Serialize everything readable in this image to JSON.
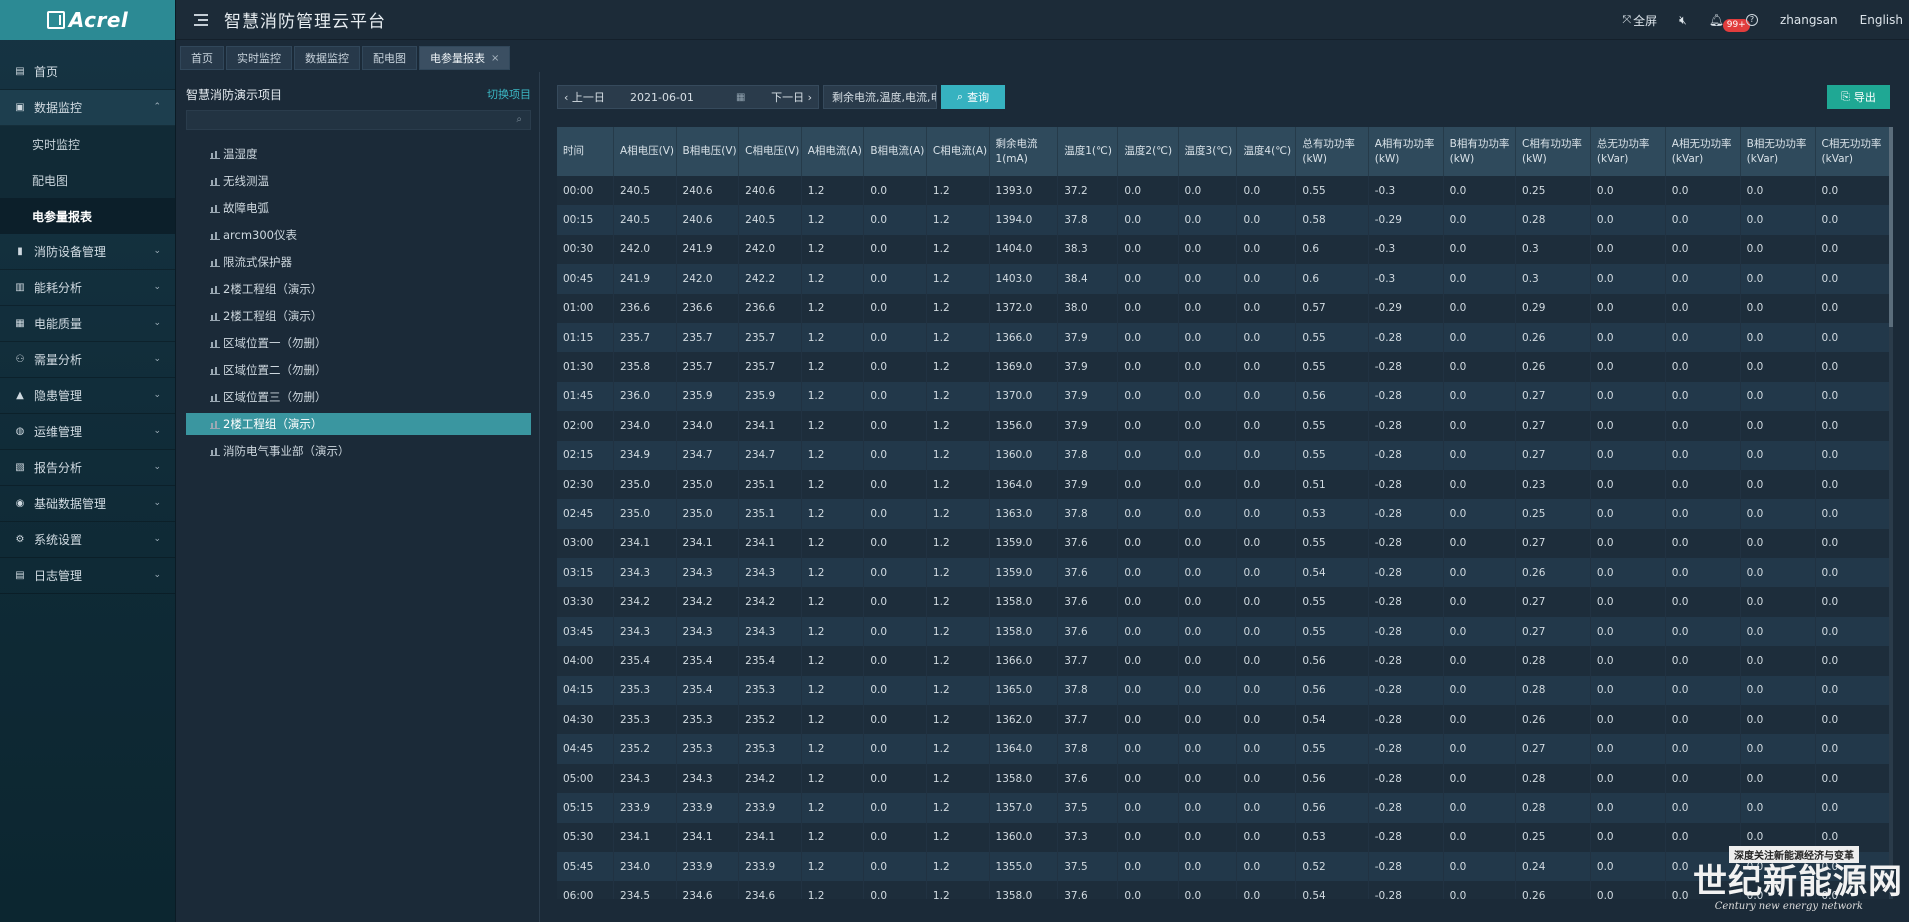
{
  "brand": {
    "name": "Acrel"
  },
  "header": {
    "title": "智慧消防管理云平台",
    "fullscreen": "全屏",
    "notif_badge": "99+",
    "username": "zhangsan",
    "language": "English"
  },
  "sidebar": {
    "items": [
      {
        "label": "首页",
        "icon": "home-icon"
      },
      {
        "label": "数据监控",
        "icon": "monitor-icon",
        "open": true,
        "children": [
          "实时监控",
          "配电图",
          "电参量报表"
        ],
        "active_child": "电参量报表"
      },
      {
        "label": "消防设备管理",
        "icon": "extinguisher-icon"
      },
      {
        "label": "能耗分析",
        "icon": "bar-chart-icon"
      },
      {
        "label": "电能质量",
        "icon": "power-icon"
      },
      {
        "label": "需量分析",
        "icon": "network-icon"
      },
      {
        "label": "隐患管理",
        "icon": "warning-icon"
      },
      {
        "label": "运维管理",
        "icon": "globe-icon"
      },
      {
        "label": "报告分析",
        "icon": "report-icon"
      },
      {
        "label": "基础数据管理",
        "icon": "database-icon"
      },
      {
        "label": "系统设置",
        "icon": "gear-icon"
      },
      {
        "label": "日志管理",
        "icon": "log-icon"
      }
    ]
  },
  "tabs": [
    {
      "label": "首页"
    },
    {
      "label": "实时监控"
    },
    {
      "label": "数据监控"
    },
    {
      "label": "配电图"
    },
    {
      "label": "电参量报表",
      "active": true
    }
  ],
  "tree": {
    "title": "智慧消防演示项目",
    "switch_label": "切换项目",
    "search_placeholder": "",
    "nodes": [
      "温湿度",
      "无线测温",
      "故障电弧",
      "arcm300仪表",
      "限流式保护器",
      "2楼工程组（演示）",
      "2楼工程组（演示）",
      "区域位置一（勿删）",
      "区域位置二（勿删）",
      "区域位置三（勿删）",
      "2楼工程组（演示）",
      "消防电气事业部（演示）"
    ],
    "selected_index": 10
  },
  "toolbar": {
    "prev_label": "上一日",
    "date": "2021-06-01",
    "next_label": "下一日",
    "params": "剩余电流,温度,电流,电",
    "query_label": "查询",
    "export_label": "导出"
  },
  "table": {
    "headers": [
      "时间",
      "A相电压(V)",
      "B相电压(V)",
      "C相电压(V)",
      "A相电流(A)",
      "B相电流(A)",
      "C相电流(A)",
      "剩余电流1(mA)",
      "温度1(℃)",
      "温度2(℃)",
      "温度3(℃)",
      "温度4(℃)",
      "总有功功率(kW)",
      "A相有功功率(kW)",
      "B相有功功率(kW)",
      "C相有功功率(kW)",
      "总无功功率(kVar)",
      "A相无功功率(kVar)",
      "B相无功功率(kVar)",
      "C相无功功率(kVar)"
    ],
    "rows": [
      [
        "00:00",
        "240.5",
        "240.6",
        "240.6",
        "1.2",
        "0.0",
        "1.2",
        "1393.0",
        "37.2",
        "0.0",
        "0.0",
        "0.0",
        "0.55",
        "-0.3",
        "0.0",
        "0.25",
        "0.0",
        "0.0",
        "0.0",
        "0.0"
      ],
      [
        "00:15",
        "240.5",
        "240.6",
        "240.5",
        "1.2",
        "0.0",
        "1.2",
        "1394.0",
        "37.8",
        "0.0",
        "0.0",
        "0.0",
        "0.58",
        "-0.29",
        "0.0",
        "0.28",
        "0.0",
        "0.0",
        "0.0",
        "0.0"
      ],
      [
        "00:30",
        "242.0",
        "241.9",
        "242.0",
        "1.2",
        "0.0",
        "1.2",
        "1404.0",
        "38.3",
        "0.0",
        "0.0",
        "0.0",
        "0.6",
        "-0.3",
        "0.0",
        "0.3",
        "0.0",
        "0.0",
        "0.0",
        "0.0"
      ],
      [
        "00:45",
        "241.9",
        "242.0",
        "242.2",
        "1.2",
        "0.0",
        "1.2",
        "1403.0",
        "38.4",
        "0.0",
        "0.0",
        "0.0",
        "0.6",
        "-0.3",
        "0.0",
        "0.3",
        "0.0",
        "0.0",
        "0.0",
        "0.0"
      ],
      [
        "01:00",
        "236.6",
        "236.6",
        "236.6",
        "1.2",
        "0.0",
        "1.2",
        "1372.0",
        "38.0",
        "0.0",
        "0.0",
        "0.0",
        "0.57",
        "-0.29",
        "0.0",
        "0.29",
        "0.0",
        "0.0",
        "0.0",
        "0.0"
      ],
      [
        "01:15",
        "235.7",
        "235.7",
        "235.7",
        "1.2",
        "0.0",
        "1.2",
        "1366.0",
        "37.9",
        "0.0",
        "0.0",
        "0.0",
        "0.55",
        "-0.28",
        "0.0",
        "0.26",
        "0.0",
        "0.0",
        "0.0",
        "0.0"
      ],
      [
        "01:30",
        "235.8",
        "235.7",
        "235.7",
        "1.2",
        "0.0",
        "1.2",
        "1369.0",
        "37.9",
        "0.0",
        "0.0",
        "0.0",
        "0.55",
        "-0.28",
        "0.0",
        "0.26",
        "0.0",
        "0.0",
        "0.0",
        "0.0"
      ],
      [
        "01:45",
        "236.0",
        "235.9",
        "235.9",
        "1.2",
        "0.0",
        "1.2",
        "1370.0",
        "37.9",
        "0.0",
        "0.0",
        "0.0",
        "0.56",
        "-0.28",
        "0.0",
        "0.27",
        "0.0",
        "0.0",
        "0.0",
        "0.0"
      ],
      [
        "02:00",
        "234.0",
        "234.0",
        "234.1",
        "1.2",
        "0.0",
        "1.2",
        "1356.0",
        "37.9",
        "0.0",
        "0.0",
        "0.0",
        "0.55",
        "-0.28",
        "0.0",
        "0.27",
        "0.0",
        "0.0",
        "0.0",
        "0.0"
      ],
      [
        "02:15",
        "234.9",
        "234.7",
        "234.7",
        "1.2",
        "0.0",
        "1.2",
        "1360.0",
        "37.8",
        "0.0",
        "0.0",
        "0.0",
        "0.55",
        "-0.28",
        "0.0",
        "0.27",
        "0.0",
        "0.0",
        "0.0",
        "0.0"
      ],
      [
        "02:30",
        "235.0",
        "235.0",
        "235.1",
        "1.2",
        "0.0",
        "1.2",
        "1364.0",
        "37.9",
        "0.0",
        "0.0",
        "0.0",
        "0.51",
        "-0.28",
        "0.0",
        "0.23",
        "0.0",
        "0.0",
        "0.0",
        "0.0"
      ],
      [
        "02:45",
        "235.0",
        "235.0",
        "235.1",
        "1.2",
        "0.0",
        "1.2",
        "1363.0",
        "37.8",
        "0.0",
        "0.0",
        "0.0",
        "0.53",
        "-0.28",
        "0.0",
        "0.25",
        "0.0",
        "0.0",
        "0.0",
        "0.0"
      ],
      [
        "03:00",
        "234.1",
        "234.1",
        "234.1",
        "1.2",
        "0.0",
        "1.2",
        "1359.0",
        "37.6",
        "0.0",
        "0.0",
        "0.0",
        "0.55",
        "-0.28",
        "0.0",
        "0.27",
        "0.0",
        "0.0",
        "0.0",
        "0.0"
      ],
      [
        "03:15",
        "234.3",
        "234.3",
        "234.3",
        "1.2",
        "0.0",
        "1.2",
        "1359.0",
        "37.6",
        "0.0",
        "0.0",
        "0.0",
        "0.54",
        "-0.28",
        "0.0",
        "0.26",
        "0.0",
        "0.0",
        "0.0",
        "0.0"
      ],
      [
        "03:30",
        "234.2",
        "234.2",
        "234.2",
        "1.2",
        "0.0",
        "1.2",
        "1358.0",
        "37.6",
        "0.0",
        "0.0",
        "0.0",
        "0.55",
        "-0.28",
        "0.0",
        "0.27",
        "0.0",
        "0.0",
        "0.0",
        "0.0"
      ],
      [
        "03:45",
        "234.3",
        "234.3",
        "234.3",
        "1.2",
        "0.0",
        "1.2",
        "1358.0",
        "37.6",
        "0.0",
        "0.0",
        "0.0",
        "0.55",
        "-0.28",
        "0.0",
        "0.27",
        "0.0",
        "0.0",
        "0.0",
        "0.0"
      ],
      [
        "04:00",
        "235.4",
        "235.4",
        "235.4",
        "1.2",
        "0.0",
        "1.2",
        "1366.0",
        "37.7",
        "0.0",
        "0.0",
        "0.0",
        "0.56",
        "-0.28",
        "0.0",
        "0.28",
        "0.0",
        "0.0",
        "0.0",
        "0.0"
      ],
      [
        "04:15",
        "235.3",
        "235.4",
        "235.3",
        "1.2",
        "0.0",
        "1.2",
        "1365.0",
        "37.8",
        "0.0",
        "0.0",
        "0.0",
        "0.56",
        "-0.28",
        "0.0",
        "0.28",
        "0.0",
        "0.0",
        "0.0",
        "0.0"
      ],
      [
        "04:30",
        "235.3",
        "235.3",
        "235.2",
        "1.2",
        "0.0",
        "1.2",
        "1362.0",
        "37.7",
        "0.0",
        "0.0",
        "0.0",
        "0.54",
        "-0.28",
        "0.0",
        "0.26",
        "0.0",
        "0.0",
        "0.0",
        "0.0"
      ],
      [
        "04:45",
        "235.2",
        "235.3",
        "235.3",
        "1.2",
        "0.0",
        "1.2",
        "1364.0",
        "37.8",
        "0.0",
        "0.0",
        "0.0",
        "0.55",
        "-0.28",
        "0.0",
        "0.27",
        "0.0",
        "0.0",
        "0.0",
        "0.0"
      ],
      [
        "05:00",
        "234.3",
        "234.3",
        "234.2",
        "1.2",
        "0.0",
        "1.2",
        "1358.0",
        "37.6",
        "0.0",
        "0.0",
        "0.0",
        "0.56",
        "-0.28",
        "0.0",
        "0.28",
        "0.0",
        "0.0",
        "0.0",
        "0.0"
      ],
      [
        "05:15",
        "233.9",
        "233.9",
        "233.9",
        "1.2",
        "0.0",
        "1.2",
        "1357.0",
        "37.5",
        "0.0",
        "0.0",
        "0.0",
        "0.56",
        "-0.28",
        "0.0",
        "0.28",
        "0.0",
        "0.0",
        "0.0",
        "0.0"
      ],
      [
        "05:30",
        "234.1",
        "234.1",
        "234.1",
        "1.2",
        "0.0",
        "1.2",
        "1360.0",
        "37.3",
        "0.0",
        "0.0",
        "0.0",
        "0.53",
        "-0.28",
        "0.0",
        "0.25",
        "0.0",
        "0.0",
        "0.0",
        "0.0"
      ],
      [
        "05:45",
        "234.0",
        "233.9",
        "233.9",
        "1.2",
        "0.0",
        "1.2",
        "1355.0",
        "37.5",
        "0.0",
        "0.0",
        "0.0",
        "0.52",
        "-0.28",
        "0.0",
        "0.24",
        "0.0",
        "0.0",
        "0.0",
        "0.0"
      ],
      [
        "06:00",
        "234.5",
        "234.6",
        "234.6",
        "1.2",
        "0.0",
        "1.2",
        "1358.0",
        "37.6",
        "0.0",
        "0.0",
        "0.0",
        "0.54",
        "-0.28",
        "0.0",
        "0.26",
        "0.0",
        "0.0",
        "0.0",
        "0.0"
      ]
    ]
  },
  "watermark": {
    "top": "深度关注新能源经济与变革",
    "main": "世纪新能源网",
    "sub": "Century new energy network"
  }
}
